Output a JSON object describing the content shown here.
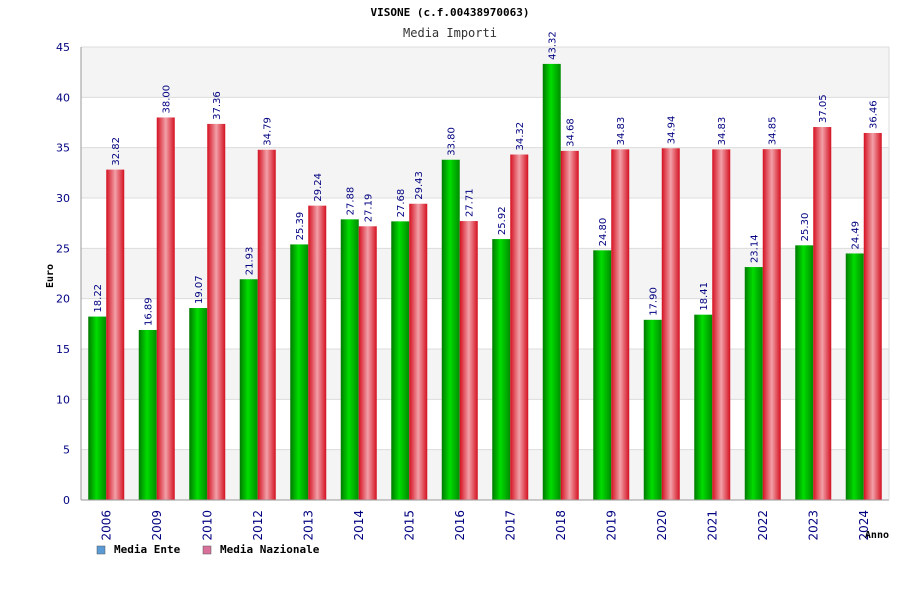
{
  "chart_data": {
    "type": "bar",
    "title": "VISONE (c.f.00438970063)",
    "subtitle": "Media Importi",
    "xlabel": "Anno",
    "ylabel": "Euro",
    "ylim": [
      0,
      45
    ],
    "yticks": [
      0,
      5,
      10,
      15,
      20,
      25,
      30,
      35,
      40,
      45
    ],
    "categories": [
      "2006",
      "2009",
      "2010",
      "2012",
      "2013",
      "2014",
      "2015",
      "2016",
      "2017",
      "2018",
      "2019",
      "2020",
      "2021",
      "2022",
      "2023",
      "2024"
    ],
    "series": [
      {
        "name": "Media Ente",
        "color": "#00b400",
        "legend_color": "#5b9bd5",
        "values": [
          18.22,
          16.89,
          19.07,
          21.93,
          25.39,
          27.88,
          27.68,
          33.8,
          25.92,
          43.32,
          24.8,
          17.9,
          18.41,
          23.14,
          25.3,
          24.49
        ],
        "labels": [
          "18.22",
          "16.89",
          "19.07",
          "21.93",
          "25.39",
          "27.88",
          "27.68",
          "33.80",
          "25.92",
          "43.32",
          "24.80",
          "17.90",
          "18.41",
          "23.14",
          "25.30",
          "24.49"
        ]
      },
      {
        "name": "Media Nazionale",
        "color": "#e8202a",
        "legend_color": "#d8709a",
        "values": [
          32.82,
          38.0,
          37.36,
          34.79,
          29.24,
          27.19,
          29.43,
          27.71,
          34.32,
          34.68,
          34.83,
          34.94,
          34.83,
          34.85,
          37.05,
          36.46
        ],
        "labels": [
          "32.82",
          "38.00",
          "37.36",
          "34.79",
          "29.24",
          "27.19",
          "29.43",
          "27.71",
          "34.32",
          "34.68",
          "34.83",
          "34.94",
          "34.83",
          "34.85",
          "37.05",
          "36.46"
        ]
      }
    ],
    "grid": true,
    "legend_position": "bottom-left"
  }
}
